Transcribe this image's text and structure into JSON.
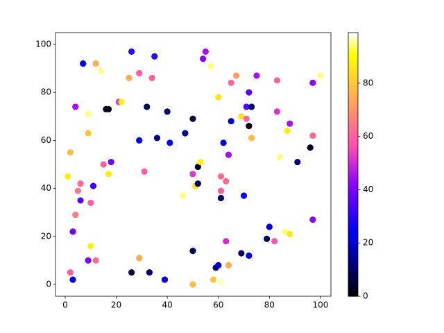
{
  "chart_data": {
    "type": "scatter",
    "x": [
      7,
      12,
      14,
      26,
      35,
      25,
      29,
      34,
      54,
      55,
      57,
      4,
      9,
      16,
      17,
      21,
      22,
      32,
      40,
      9,
      2,
      29,
      36,
      41,
      47,
      50,
      60,
      65,
      67,
      72,
      71,
      73,
      75,
      83,
      83,
      88,
      87,
      97,
      100,
      65,
      69,
      71,
      72,
      73,
      62,
      64,
      96,
      97,
      84,
      91,
      1,
      6,
      5,
      11,
      6,
      10,
      4,
      3,
      15,
      18,
      17,
      31,
      50,
      52,
      53,
      51,
      46,
      52,
      61,
      63,
      61,
      61,
      70,
      80,
      79,
      82,
      86,
      88,
      97,
      10,
      9,
      12,
      2,
      3,
      26,
      29,
      33,
      39,
      50,
      50,
      59,
      60,
      58,
      61,
      64,
      63,
      69,
      72
    ],
    "y": [
      92,
      92,
      89,
      97,
      95,
      86,
      88,
      86,
      94,
      97,
      91,
      74,
      71,
      73,
      73,
      76,
      76,
      74,
      72,
      63,
      55,
      60,
      61,
      59,
      63,
      69,
      78,
      84,
      87,
      80,
      74,
      74,
      87,
      85,
      72,
      67,
      64,
      84,
      87,
      68,
      70,
      69,
      66,
      61,
      59,
      54,
      57,
      62,
      53,
      51,
      45,
      42,
      39,
      41,
      35,
      34,
      29,
      22,
      50,
      51,
      46,
      47,
      46,
      49,
      51,
      41,
      37,
      42,
      45,
      43,
      39,
      36,
      37,
      24,
      19,
      18,
      22,
      21,
      27,
      16,
      10,
      10,
      5,
      2,
      5,
      11,
      5,
      2,
      14,
      0,
      7,
      8,
      2,
      1,
      8,
      18,
      13,
      12
    ],
    "c": [
      22,
      75,
      95,
      30,
      30,
      75,
      60,
      60,
      42,
      45,
      95,
      45,
      95,
      3,
      3,
      52,
      88,
      8,
      10,
      80,
      78,
      22,
      12,
      25,
      15,
      5,
      86,
      62,
      72,
      35,
      35,
      10,
      45,
      60,
      52,
      45,
      87,
      42,
      95,
      20,
      85,
      62,
      2,
      78,
      22,
      45,
      3,
      62,
      95,
      12,
      88,
      62,
      65,
      32,
      35,
      60,
      66,
      38,
      60,
      38,
      88,
      60,
      52,
      3,
      88,
      85,
      95,
      8,
      62,
      62,
      60,
      10,
      25,
      20,
      10,
      58,
      95,
      86,
      42,
      88,
      40,
      62,
      60,
      22,
      5,
      75,
      10,
      20,
      8,
      78,
      10,
      20,
      80,
      97,
      75,
      50,
      10,
      22
    ],
    "colormap": "gnuplot2",
    "clim": [
      0,
      99
    ],
    "cticks": [
      0,
      20,
      40,
      60,
      80
    ],
    "xlim": [
      -3.8,
      104.1
    ],
    "ylim": [
      -4.9,
      104.9
    ],
    "xticks": [
      0,
      20,
      40,
      60,
      80,
      100
    ],
    "yticks": [
      0,
      20,
      40,
      60,
      80,
      100
    ]
  }
}
